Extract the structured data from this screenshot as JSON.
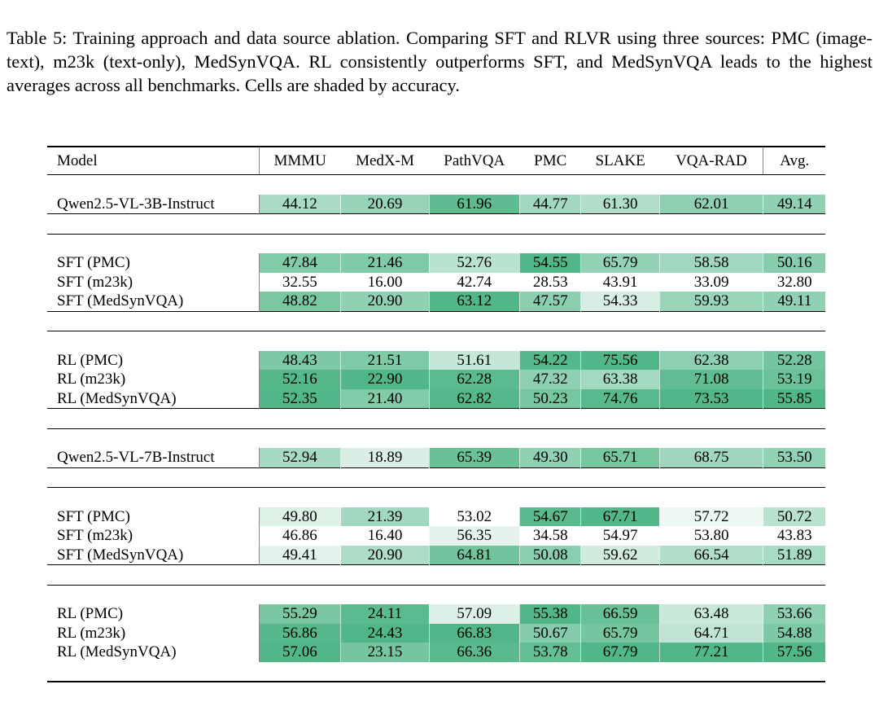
{
  "caption": "Table 5: Training approach and data source ablation.  Comparing SFT and RLVR using three sources: PMC (image-text), m23k (text-only), MedSynVQA. RL consistently outperforms SFT, and MedSynVQA leads to the highest averages across all benchmarks. Cells are shaded by accuracy.",
  "shade_color": "#52b788",
  "columns": [
    "Model",
    "MMMU",
    "MedX-M",
    "PathVQA",
    "PMC",
    "SLAKE",
    "VQA-RAD",
    "Avg."
  ],
  "groups": [
    {
      "block": "3B",
      "rows": [
        {
          "model": "Qwen2.5-VL-3B-Instruct",
          "values": [
            "44.12",
            "20.69",
            "61.96",
            "44.77",
            "61.30",
            "62.01",
            "49.14"
          ]
        }
      ]
    },
    {
      "block": "3B",
      "rows": [
        {
          "model": "SFT (PMC)",
          "values": [
            "47.84",
            "21.46",
            "52.76",
            "54.55",
            "65.79",
            "58.58",
            "50.16"
          ]
        },
        {
          "model": "SFT (m23k)",
          "values": [
            "32.55",
            "16.00",
            "42.74",
            "28.53",
            "43.91",
            "33.09",
            "32.80"
          ]
        },
        {
          "model": "SFT (MedSynVQA)",
          "values": [
            "48.82",
            "20.90",
            "63.12",
            "47.57",
            "54.33",
            "59.93",
            "49.11"
          ]
        }
      ]
    },
    {
      "block": "3B",
      "rows": [
        {
          "model": "RL (PMC)",
          "values": [
            "48.43",
            "21.51",
            "51.61",
            "54.22",
            "75.56",
            "62.38",
            "52.28"
          ]
        },
        {
          "model": "RL (m23k)",
          "values": [
            "52.16",
            "22.90",
            "62.28",
            "47.32",
            "63.38",
            "71.08",
            "53.19"
          ]
        },
        {
          "model": "RL (MedSynVQA)",
          "values": [
            "52.35",
            "21.40",
            "62.82",
            "50.23",
            "74.76",
            "73.53",
            "55.85"
          ]
        }
      ]
    },
    {
      "block": "7B",
      "rows": [
        {
          "model": "Qwen2.5-VL-7B-Instruct",
          "values": [
            "52.94",
            "18.89",
            "65.39",
            "49.30",
            "65.71",
            "68.75",
            "53.50"
          ]
        }
      ]
    },
    {
      "block": "7B",
      "rows": [
        {
          "model": "SFT (PMC)",
          "values": [
            "49.80",
            "21.39",
            "53.02",
            "54.67",
            "67.71",
            "57.72",
            "50.72"
          ]
        },
        {
          "model": "SFT (m23k)",
          "values": [
            "46.86",
            "16.40",
            "56.35",
            "34.58",
            "54.97",
            "53.80",
            "43.83"
          ]
        },
        {
          "model": "SFT (MedSynVQA)",
          "values": [
            "49.41",
            "20.90",
            "64.81",
            "50.08",
            "59.62",
            "66.54",
            "51.89"
          ]
        }
      ]
    },
    {
      "block": "7B",
      "rows": [
        {
          "model": "RL (PMC)",
          "values": [
            "55.29",
            "24.11",
            "57.09",
            "55.38",
            "66.59",
            "63.48",
            "53.66"
          ]
        },
        {
          "model": "RL (m23k)",
          "values": [
            "56.86",
            "24.43",
            "66.83",
            "50.67",
            "65.79",
            "64.71",
            "54.88"
          ]
        },
        {
          "model": "RL (MedSynVQA)",
          "values": [
            "57.06",
            "23.15",
            "66.36",
            "53.78",
            "67.79",
            "77.21",
            "57.56"
          ]
        }
      ]
    }
  ]
}
